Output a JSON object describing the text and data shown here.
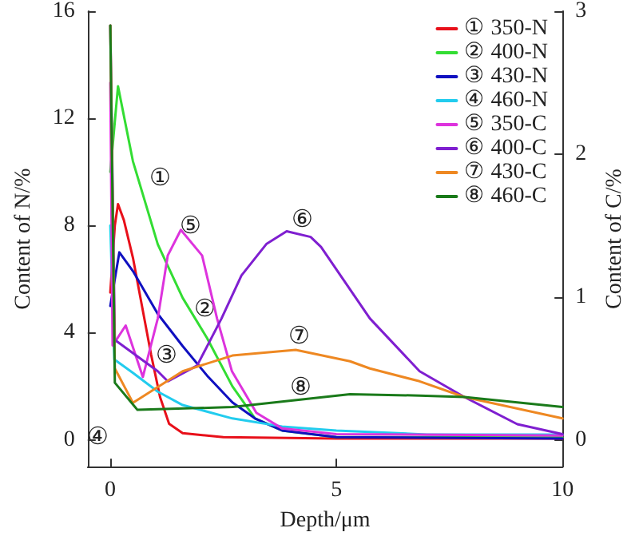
{
  "chart_data": {
    "type": "line",
    "xlabel": "Depth/μm",
    "ylabel": "Content of N/%",
    "y2label": "Content of C/%",
    "xlim": [
      -0.5,
      10
    ],
    "xticks": [
      0,
      5,
      10
    ],
    "ylim": [
      -1,
      16
    ],
    "yticks": [
      0,
      4,
      8,
      12,
      16
    ],
    "y2lim": [
      -0.1875,
      3
    ],
    "y2ticks": [
      0,
      1,
      2,
      3
    ],
    "grid": false,
    "legend": "top right",
    "marker": "none",
    "line_style": "solid",
    "series": [
      {
        "name": "① 350-N",
        "color": "#e8101a",
        "x": [
          0,
          0.1,
          0.17,
          0.3,
          0.5,
          0.7,
          0.9,
          1.1,
          1.3,
          1.6,
          2.5,
          5,
          10
        ],
        "values": [
          5.5,
          8.0,
          8.8,
          8.2,
          6.8,
          5.0,
          3.2,
          1.6,
          0.6,
          0.25,
          0.1,
          0.05,
          0.05
        ]
      },
      {
        "name": "② 400-N",
        "color": "#33dd33",
        "x": [
          0,
          0.17,
          0.5,
          1.05,
          1.6,
          2.14,
          2.7,
          3.2,
          3.8,
          5,
          10
        ],
        "values": [
          10,
          13.2,
          10.4,
          7.3,
          5.3,
          3.8,
          2.0,
          0.8,
          0.35,
          0.1,
          0.1
        ]
      },
      {
        "name": "③ 430-N",
        "color": "#1010c0",
        "x": [
          0,
          0.2,
          0.5,
          1.05,
          1.6,
          2.14,
          2.7,
          3.2,
          3.8,
          5,
          10
        ],
        "values": [
          5,
          7.0,
          6.3,
          4.7,
          3.5,
          2.4,
          1.4,
          0.8,
          0.35,
          0.1,
          0.05
        ]
      },
      {
        "name": "④ 460-N",
        "color": "#22ccee",
        "x": [
          0,
          0.09,
          0.5,
          1.05,
          1.6,
          2.7,
          3.8,
          5,
          7,
          10
        ],
        "values": [
          8,
          3.0,
          2.5,
          1.8,
          1.3,
          0.8,
          0.5,
          0.35,
          0.2,
          0.2
        ]
      },
      {
        "name": "⑤ 350-C",
        "color": "#dd33dd",
        "axis": "y2",
        "x": [
          0,
          0.05,
          0.34,
          0.72,
          1.05,
          1.27,
          1.56,
          2.03,
          2.36,
          2.69,
          3.23,
          3.8,
          5,
          10
        ],
        "values": [
          2.5,
          0.66,
          0.8,
          0.44,
          0.85,
          1.29,
          1.47,
          1.29,
          0.85,
          0.48,
          0.19,
          0.08,
          0.04,
          0.03
        ]
      },
      {
        "name": "⑥ 400-C",
        "color": "#7f1fd0",
        "axis": "y2",
        "x": [
          0,
          0.1,
          1.05,
          1.27,
          1.92,
          2.46,
          2.9,
          3.45,
          3.9,
          4.43,
          4.66,
          5.74,
          6.84,
          7.83,
          9.0,
          10
        ],
        "values": [
          2.9,
          0.7,
          0.48,
          0.41,
          0.52,
          0.85,
          1.15,
          1.37,
          1.46,
          1.42,
          1.35,
          0.85,
          0.48,
          0.3,
          0.11,
          0.04
        ]
      },
      {
        "name": "⑦ 430-C",
        "color": "#ee8822",
        "axis": "y2",
        "x": [
          0,
          0.1,
          0.5,
          1.6,
          2.7,
          4.1,
          5.3,
          5.74,
          6.84,
          7.83,
          10
        ],
        "values": [
          2.9,
          0.5,
          0.26,
          0.48,
          0.59,
          0.63,
          0.55,
          0.5,
          0.41,
          0.3,
          0.15
        ]
      },
      {
        "name": "⑧ 460-C",
        "color": "#1a7a1a",
        "axis": "y2",
        "x": [
          0,
          0.1,
          0.6,
          2.7,
          5.3,
          6.84,
          7.83,
          10
        ],
        "values": [
          2.9,
          0.4,
          0.21,
          0.23,
          0.32,
          0.31,
          0.3,
          0.23
        ]
      }
    ],
    "annotations": [
      "①",
      "②",
      "③",
      "④",
      "⑤",
      "⑥",
      "⑦",
      "⑧"
    ]
  }
}
